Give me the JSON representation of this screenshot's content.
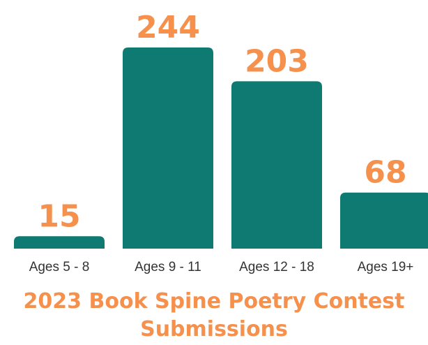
{
  "chart_data": {
    "type": "bar",
    "title": "2023 Book Spine Poetry Contest Submissions",
    "categories": [
      "Ages 5 - 8",
      "Ages 9 - 11",
      "Ages 12 - 18",
      "Ages 19+"
    ],
    "values": [
      15,
      244,
      203,
      68
    ],
    "color": "#0e7a72",
    "label_color": "#f5914d"
  }
}
